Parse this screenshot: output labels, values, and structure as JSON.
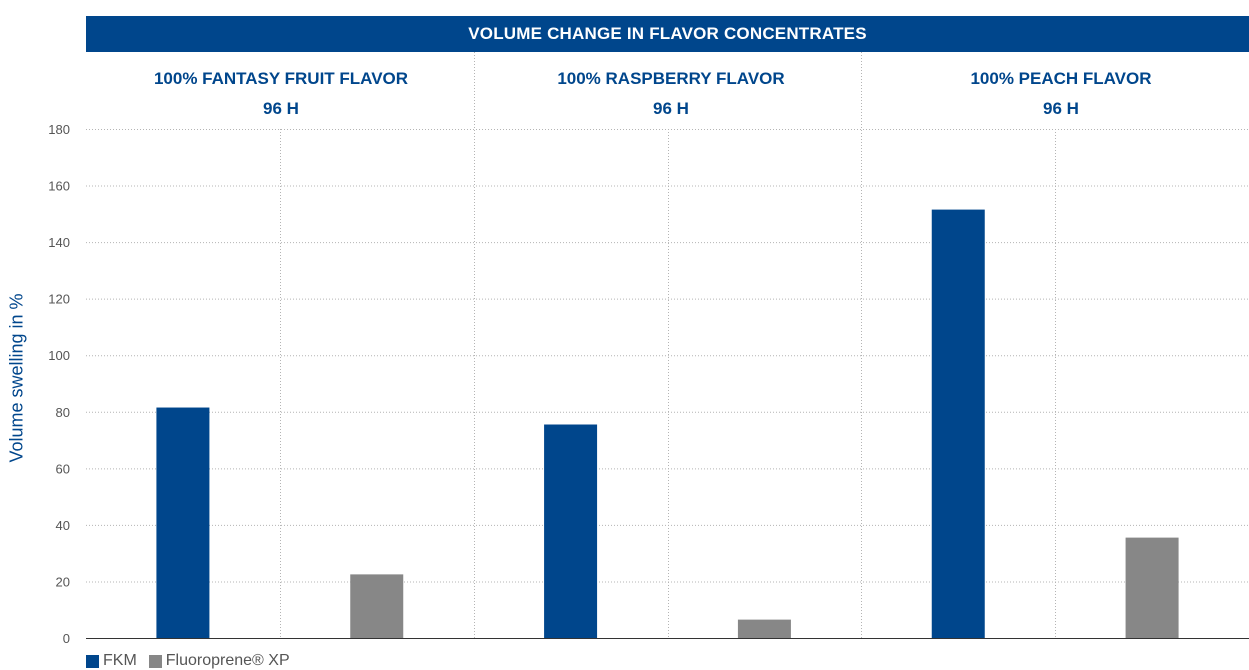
{
  "colors": {
    "header": "#00468c",
    "title_text": "#00468c",
    "fkm": "#00468c",
    "fluoroprene": "#878787",
    "axis_text": "#555555",
    "grid": "#b4b4b4",
    "axis_line": "#333333"
  },
  "chart_data": {
    "type": "bar",
    "title": "VOLUME CHANGE IN FLAVOR CONCENTRATES",
    "ylabel": "Volume swelling in %",
    "xlabel": "",
    "ylim": [
      0,
      180
    ],
    "yticks": [
      0,
      20,
      40,
      60,
      80,
      100,
      120,
      140,
      160,
      180
    ],
    "grid": true,
    "legend_position": "bottom-left",
    "panels": [
      {
        "title": "100% FANTASY FRUIT FLAVOR",
        "subtitle": "96 H"
      },
      {
        "title": "100% RASPBERRY FLAVOR",
        "subtitle": "96 H"
      },
      {
        "title": "100% PEACH FLAVOR",
        "subtitle": "96 H"
      }
    ],
    "categories": [
      "100% FANTASY FRUIT FLAVOR 96 H",
      "100% RASPBERRY FLAVOR 96 H",
      "100% PEACH FLAVOR 96 H"
    ],
    "series": [
      {
        "name": "FKM",
        "values": [
          81.5,
          75.5,
          151.5
        ]
      },
      {
        "name": "Fluoroprene® XP",
        "values": [
          22.5,
          6.5,
          35.5
        ]
      }
    ]
  }
}
